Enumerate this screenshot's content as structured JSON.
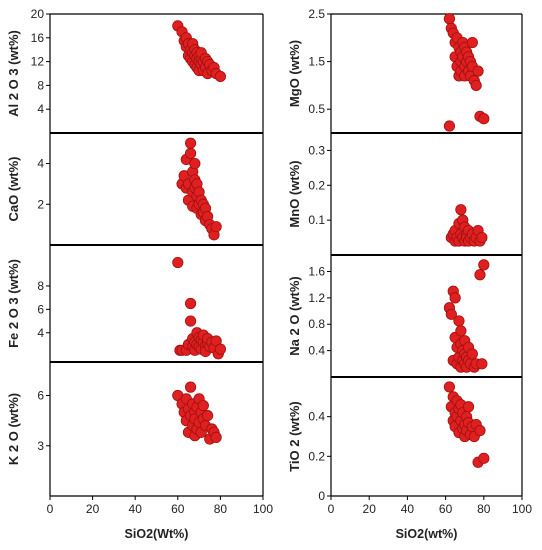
{
  "chart_data": [
    {
      "type": "scatter",
      "ylabel": "Al 2 O 3 (wt%)",
      "yticks": [
        "4",
        "8",
        "12",
        "16",
        "20"
      ],
      "ylim": [
        0,
        20
      ],
      "xlim": [
        0,
        100
      ],
      "marker_color": "#e02020",
      "x": [
        60,
        62,
        63,
        64,
        64,
        65,
        65,
        66,
        66,
        67,
        67,
        67,
        68,
        68,
        68,
        69,
        69,
        69,
        70,
        70,
        70,
        71,
        71,
        71,
        72,
        72,
        73,
        73,
        74,
        74,
        75,
        76,
        77,
        78,
        80
      ],
      "y": [
        18,
        17,
        15.5,
        16,
        14.5,
        15,
        13,
        14,
        12.5,
        15,
        13.5,
        12,
        14,
        13,
        11.5,
        13.5,
        12.5,
        11,
        13,
        12,
        10.5,
        12.5,
        11.5,
        13.5,
        12,
        10.5,
        12.5,
        11,
        12,
        10,
        11.5,
        10.5,
        11,
        10,
        9.5
      ]
    },
    {
      "type": "scatter",
      "ylabel": "MgO (wt%)",
      "yticks": [
        "0.5",
        "1.5",
        "2.5"
      ],
      "ylim": [
        0,
        2.5
      ],
      "xlim": [
        0,
        100
      ],
      "marker_color": "#e02020",
      "x": [
        62,
        63,
        64,
        65,
        65,
        66,
        66,
        67,
        67,
        68,
        68,
        68,
        69,
        69,
        70,
        70,
        70,
        71,
        71,
        72,
        72,
        73,
        73,
        74,
        74,
        75,
        76,
        77,
        78,
        80
      ],
      "y": [
        2.4,
        2.2,
        2.1,
        1.9,
        1.6,
        2.0,
        1.4,
        1.8,
        1.2,
        1.7,
        1.5,
        1.3,
        1.9,
        1.6,
        1.4,
        1.2,
        1.8,
        1.5,
        1.7,
        1.6,
        1.3,
        1.5,
        1.2,
        1.4,
        1.9,
        1.1,
        1.0,
        1.3,
        0.35,
        0.3
      ]
    },
    {
      "type": "scatter",
      "ylabel": "CaO (wt%)",
      "yticks": [
        "2",
        "4"
      ],
      "ylim": [
        0,
        5.5
      ],
      "xlim": [
        0,
        100
      ],
      "marker_color": "#e02020",
      "x": [
        62,
        63,
        64,
        64,
        65,
        65,
        66,
        66,
        67,
        67,
        67,
        68,
        68,
        68,
        69,
        69,
        69,
        70,
        70,
        71,
        71,
        72,
        72,
        73,
        73,
        74,
        75,
        76,
        77,
        78
      ],
      "y": [
        3.0,
        3.4,
        2.8,
        4.2,
        3.0,
        2.2,
        4.5,
        5.0,
        3.6,
        2.6,
        1.9,
        4.0,
        2.8,
        3.2,
        2.4,
        3.0,
        1.8,
        2.6,
        2.0,
        2.2,
        1.5,
        2.0,
        1.6,
        1.8,
        1.2,
        1.4,
        1.0,
        0.8,
        0.5,
        0.9
      ]
    },
    {
      "type": "scatter",
      "ylabel": "MnO (wt%)",
      "yticks": [
        "0.1",
        "0.2",
        "0.3"
      ],
      "ylim": [
        0,
        0.35
      ],
      "xlim": [
        0,
        100
      ],
      "marker_color": "#e02020",
      "x": [
        62,
        63,
        64,
        65,
        65,
        66,
        67,
        67,
        68,
        68,
        69,
        69,
        70,
        70,
        71,
        71,
        72,
        72,
        73,
        74,
        75,
        76,
        77,
        78,
        79
      ],
      "y": [
        0.37,
        0.05,
        0.06,
        0.04,
        0.07,
        0.05,
        0.09,
        0.04,
        0.13,
        0.06,
        0.1,
        0.05,
        0.08,
        0.04,
        0.06,
        0.05,
        0.07,
        0.04,
        0.05,
        0.06,
        0.04,
        0.05,
        0.07,
        0.04,
        0.05
      ]
    },
    {
      "type": "scatter",
      "ylabel": "Fe 2 O 3 (wt%)",
      "yticks": [
        "4",
        "6",
        "8"
      ],
      "ylim": [
        1.5,
        11.5
      ],
      "xlim": [
        0,
        100
      ],
      "marker_color": "#e02020",
      "x": [
        60,
        61,
        62,
        64,
        65,
        66,
        66,
        67,
        67,
        68,
        68,
        69,
        69,
        70,
        70,
        71,
        71,
        72,
        72,
        73,
        73,
        74,
        74,
        75,
        76,
        77,
        78,
        79,
        80
      ],
      "y": [
        10.0,
        2.5,
        2.5,
        2.5,
        3.0,
        6.5,
        5.0,
        3.5,
        2.8,
        3.2,
        2.5,
        3.0,
        4.0,
        3.6,
        2.8,
        3.4,
        2.6,
        3.2,
        3.8,
        2.9,
        2.4,
        3.1,
        3.5,
        2.8,
        3.2,
        2.7,
        3.3,
        2.2,
        2.6
      ]
    },
    {
      "type": "scatter",
      "ylabel": "Na 2 O (wt%)",
      "yticks": [
        "0.4",
        "0.8",
        "1.2",
        "1.6"
      ],
      "ylim": [
        0,
        1.85
      ],
      "xlim": [
        0,
        100
      ],
      "marker_color": "#e02020",
      "x": [
        62,
        63,
        64,
        64,
        65,
        65,
        66,
        66,
        67,
        67,
        68,
        68,
        68,
        69,
        69,
        70,
        70,
        70,
        71,
        71,
        72,
        72,
        73,
        74,
        75,
        76,
        78,
        79,
        80
      ],
      "y": [
        1.05,
        0.95,
        1.3,
        0.25,
        1.2,
        0.6,
        0.45,
        0.2,
        0.85,
        0.3,
        0.7,
        0.5,
        0.15,
        0.4,
        0.25,
        0.55,
        0.35,
        0.2,
        0.3,
        0.15,
        0.25,
        0.45,
        0.2,
        0.35,
        0.15,
        0.2,
        1.55,
        0.2,
        1.7
      ]
    },
    {
      "type": "scatter",
      "ylabel": "K 2 O (wt%)",
      "yticks": [
        "3",
        "6"
      ],
      "ylim": [
        0,
        8
      ],
      "xlim": [
        0,
        100
      ],
      "xlabel": "SiO2(Wt%)",
      "xticks": [
        "0",
        "20",
        "40",
        "60",
        "80",
        "100"
      ],
      "marker_color": "#e02020",
      "x": [
        60,
        62,
        63,
        64,
        64,
        65,
        65,
        66,
        66,
        67,
        67,
        68,
        68,
        68,
        69,
        69,
        70,
        70,
        71,
        71,
        72,
        72,
        73,
        74,
        75,
        76,
        77,
        78
      ],
      "y": [
        6.0,
        5.5,
        5.0,
        5.8,
        4.5,
        5.2,
        3.8,
        6.5,
        4.8,
        5.5,
        4.2,
        5.0,
        3.6,
        4.6,
        5.3,
        4.0,
        5.8,
        4.4,
        5.0,
        3.8,
        4.6,
        5.4,
        4.2,
        4.8,
        3.4,
        4.0,
        3.8,
        3.5
      ]
    },
    {
      "type": "scatter",
      "ylabel": "TiO 2 (wt%)",
      "yticks": [
        "0",
        "0.2",
        "0.4"
      ],
      "ylim": [
        0,
        0.6
      ],
      "xlim": [
        0,
        100
      ],
      "xlabel": "SiO2(wt%)",
      "xticks": [
        "0",
        "20",
        "40",
        "60",
        "80",
        "100"
      ],
      "marker_color": "#e02020",
      "x": [
        62,
        63,
        64,
        64,
        65,
        65,
        66,
        66,
        67,
        67,
        68,
        68,
        69,
        69,
        70,
        70,
        71,
        71,
        72,
        72,
        73,
        74,
        75,
        76,
        77,
        78,
        80
      ],
      "y": [
        0.55,
        0.45,
        0.5,
        0.38,
        0.42,
        0.35,
        0.48,
        0.4,
        0.44,
        0.32,
        0.38,
        0.46,
        0.34,
        0.42,
        0.36,
        0.3,
        0.4,
        0.33,
        0.37,
        0.45,
        0.31,
        0.35,
        0.3,
        0.36,
        0.17,
        0.33,
        0.19
      ]
    }
  ]
}
